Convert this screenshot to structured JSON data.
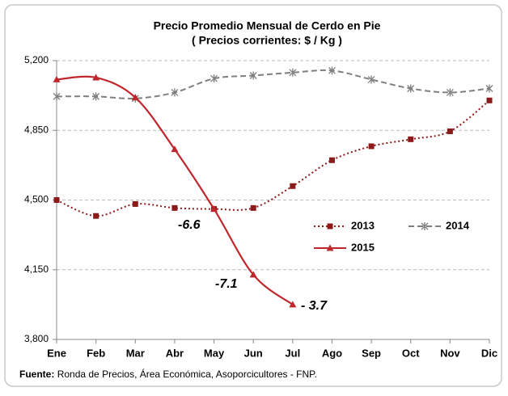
{
  "chart_data": {
    "type": "line",
    "title": "Precio Promedio Mensual de Cerdo en Pie",
    "subtitle": "( Precios corrientes: $ / Kg )",
    "categories": [
      "Ene",
      "Feb",
      "Mar",
      "Abr",
      "May",
      "Jun",
      "Jul",
      "Ago",
      "Sep",
      "Oct",
      "Nov",
      "Dic"
    ],
    "series": [
      {
        "name": "2013",
        "color": "#8b1a1a",
        "line_style": "dotted",
        "marker": "square",
        "smooth": true,
        "values": [
          4500,
          4420,
          4480,
          4460,
          4455,
          4460,
          4570,
          4700,
          4770,
          4805,
          4845,
          5000
        ]
      },
      {
        "name": "2014",
        "color": "#7f7f7f",
        "line_style": "dashed",
        "marker": "asterisk",
        "smooth": true,
        "values": [
          5020,
          5020,
          5010,
          5040,
          5110,
          5125,
          5140,
          5150,
          5105,
          5060,
          5040,
          5060
        ]
      },
      {
        "name": "2015",
        "color": "#c0272d",
        "line_style": "solid",
        "marker": "triangle",
        "smooth": true,
        "values": [
          5105,
          5115,
          5015,
          4755,
          4455,
          4125,
          3975,
          null,
          null,
          null,
          null,
          null
        ]
      }
    ],
    "ylim": [
      3800,
      5200
    ],
    "yticks": [
      {
        "value": 3800,
        "label": "3,800"
      },
      {
        "value": 4150,
        "label": "4,150"
      },
      {
        "value": 4500,
        "label": "4,500"
      },
      {
        "value": 4850,
        "label": "4,850"
      },
      {
        "value": 5200,
        "label": "5,200"
      }
    ],
    "grid": true,
    "annotations": [
      "-6.6",
      "-7.1",
      "- 3.7"
    ],
    "source_label": "Fuente:",
    "source_text": "Ronda de Precios, Área Económica, Asoporcicultores - FNP."
  }
}
